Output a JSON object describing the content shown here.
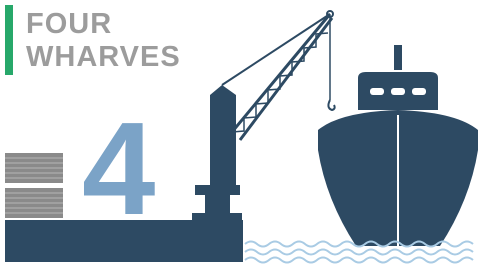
{
  "header": {
    "lines": [
      "FOUR",
      "WHARVES"
    ]
  },
  "numeral": "4"
}
